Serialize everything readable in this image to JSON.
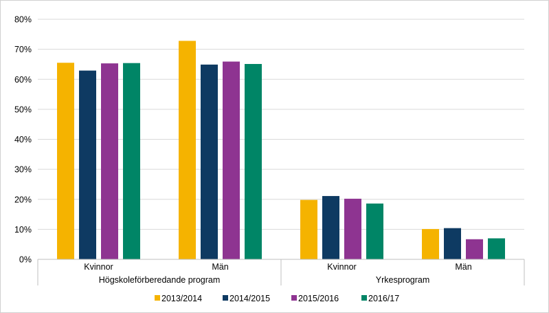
{
  "chart_data": {
    "type": "bar",
    "groups": [
      {
        "label": "Högskoleförberedande program",
        "categories": [
          "Kvinnor",
          "Män"
        ]
      },
      {
        "label": "Yrkesprogram",
        "categories": [
          "Kvinnor",
          "Män"
        ]
      }
    ],
    "categories": [
      "Kvinnor",
      "Män",
      "Kvinnor",
      "Män"
    ],
    "series": [
      {
        "name": "2013/2014",
        "color": "#F5B300",
        "values": [
          0.655,
          0.728,
          0.198,
          0.101
        ]
      },
      {
        "name": "2014/2015",
        "color": "#0E3A62",
        "values": [
          0.629,
          0.649,
          0.211,
          0.104
        ]
      },
      {
        "name": "2015/2016",
        "color": "#8E3491",
        "values": [
          0.653,
          0.659,
          0.202,
          0.067
        ]
      },
      {
        "name": "2016/17",
        "color": "#008566",
        "values": [
          0.654,
          0.651,
          0.186,
          0.07
        ]
      }
    ],
    "yticks": [
      "0%",
      "10%",
      "20%",
      "30%",
      "40%",
      "50%",
      "60%",
      "70%",
      "80%"
    ],
    "ylim": [
      0,
      0.8
    ],
    "grid": true,
    "legend_position": "bottom"
  }
}
